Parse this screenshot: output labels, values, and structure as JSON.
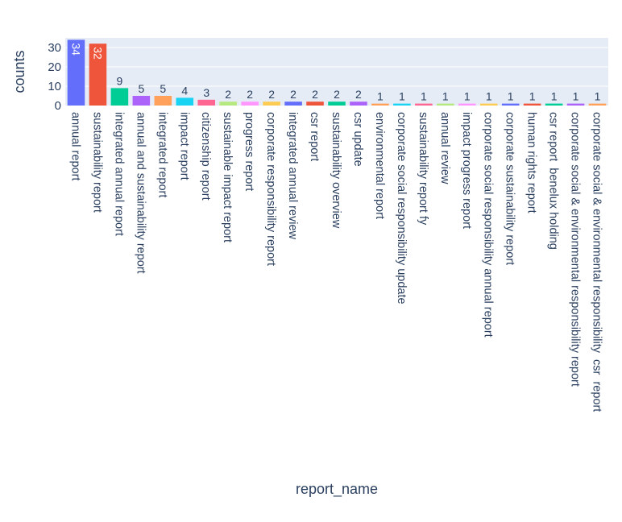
{
  "chart_data": {
    "type": "bar",
    "xlabel": "report_name",
    "ylabel": "counts",
    "ylim": [
      0,
      35
    ],
    "yticks": [
      0,
      10,
      20,
      30
    ],
    "grid": true,
    "categories": [
      "annual report",
      "sustainability report",
      "integrated annual report",
      "annual and sustainability report",
      "integrated report",
      "impact report",
      "citizenship report",
      "sustainable impact report",
      "progress report",
      "corporate responsibility report",
      "integrated annual review",
      "csr report",
      "sustainability overview",
      "csr update",
      "environmental report",
      "corporate social responsibility update",
      "sustainability report fy",
      "annual review",
      "impact progress report",
      "corporate social responsibility annual report",
      "corporate sustainability report",
      "human rights report",
      "csr report  benelux holding",
      "corporate social & environmental responsibility report",
      "corporate social & environmental responsibility  csr  report"
    ],
    "values": [
      34,
      32,
      9,
      5,
      5,
      4,
      3,
      2,
      2,
      2,
      2,
      2,
      2,
      2,
      1,
      1,
      1,
      1,
      1,
      1,
      1,
      1,
      1,
      1,
      1
    ],
    "colors": [
      "#636efa",
      "#ef553b",
      "#00cc96",
      "#ab63fa",
      "#ffa15a",
      "#19d3f3",
      "#ff6692",
      "#b6e880",
      "#ff97ff",
      "#fecb52",
      "#636efa",
      "#ef553b",
      "#00cc96",
      "#ab63fa",
      "#ffa15a",
      "#19d3f3",
      "#ff6692",
      "#b6e880",
      "#ff97ff",
      "#fecb52",
      "#636efa",
      "#ef553b",
      "#00cc96",
      "#ab63fa",
      "#ffa15a"
    ],
    "plot_background": "#e5ecf6",
    "grid_color": "#ffffff",
    "text_color": "#2a3f5f"
  }
}
